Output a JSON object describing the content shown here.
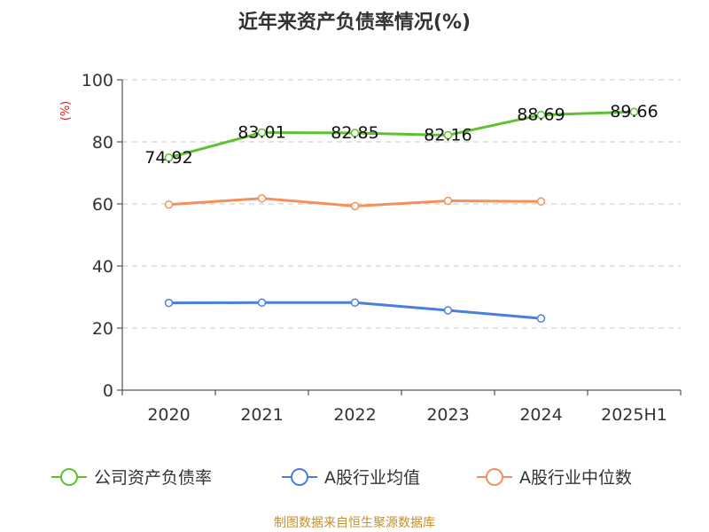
{
  "chart_data": {
    "type": "line",
    "title": "近年来资产负债率情况(%)",
    "ylabel": "(%)",
    "xlabel": "",
    "categories": [
      "2020",
      "2021",
      "2022",
      "2023",
      "2024",
      "2025H1"
    ],
    "ylim": [
      0,
      100
    ],
    "yticks": [
      0,
      20,
      40,
      60,
      80,
      100
    ],
    "grid": true,
    "legend_position": "bottom",
    "series": [
      {
        "name": "公司资产负债率",
        "color": "#5ec22e",
        "values": [
          74.92,
          83.01,
          82.85,
          82.16,
          88.69,
          89.66
        ],
        "labels": [
          "74.92",
          "83.01",
          "82.85",
          "82.16",
          "88.69",
          "89.66"
        ]
      },
      {
        "name": "A股行业均值",
        "color": "#4a7fe0",
        "values": [
          28.1,
          28.2,
          28.2,
          25.7,
          23.1,
          null
        ],
        "labels": []
      },
      {
        "name": "A股行业中位数",
        "color": "#f4915a",
        "values": [
          59.8,
          61.8,
          59.3,
          61.0,
          60.8,
          null
        ],
        "labels": []
      }
    ],
    "source": "制图数据来自恒生聚源数据库"
  }
}
